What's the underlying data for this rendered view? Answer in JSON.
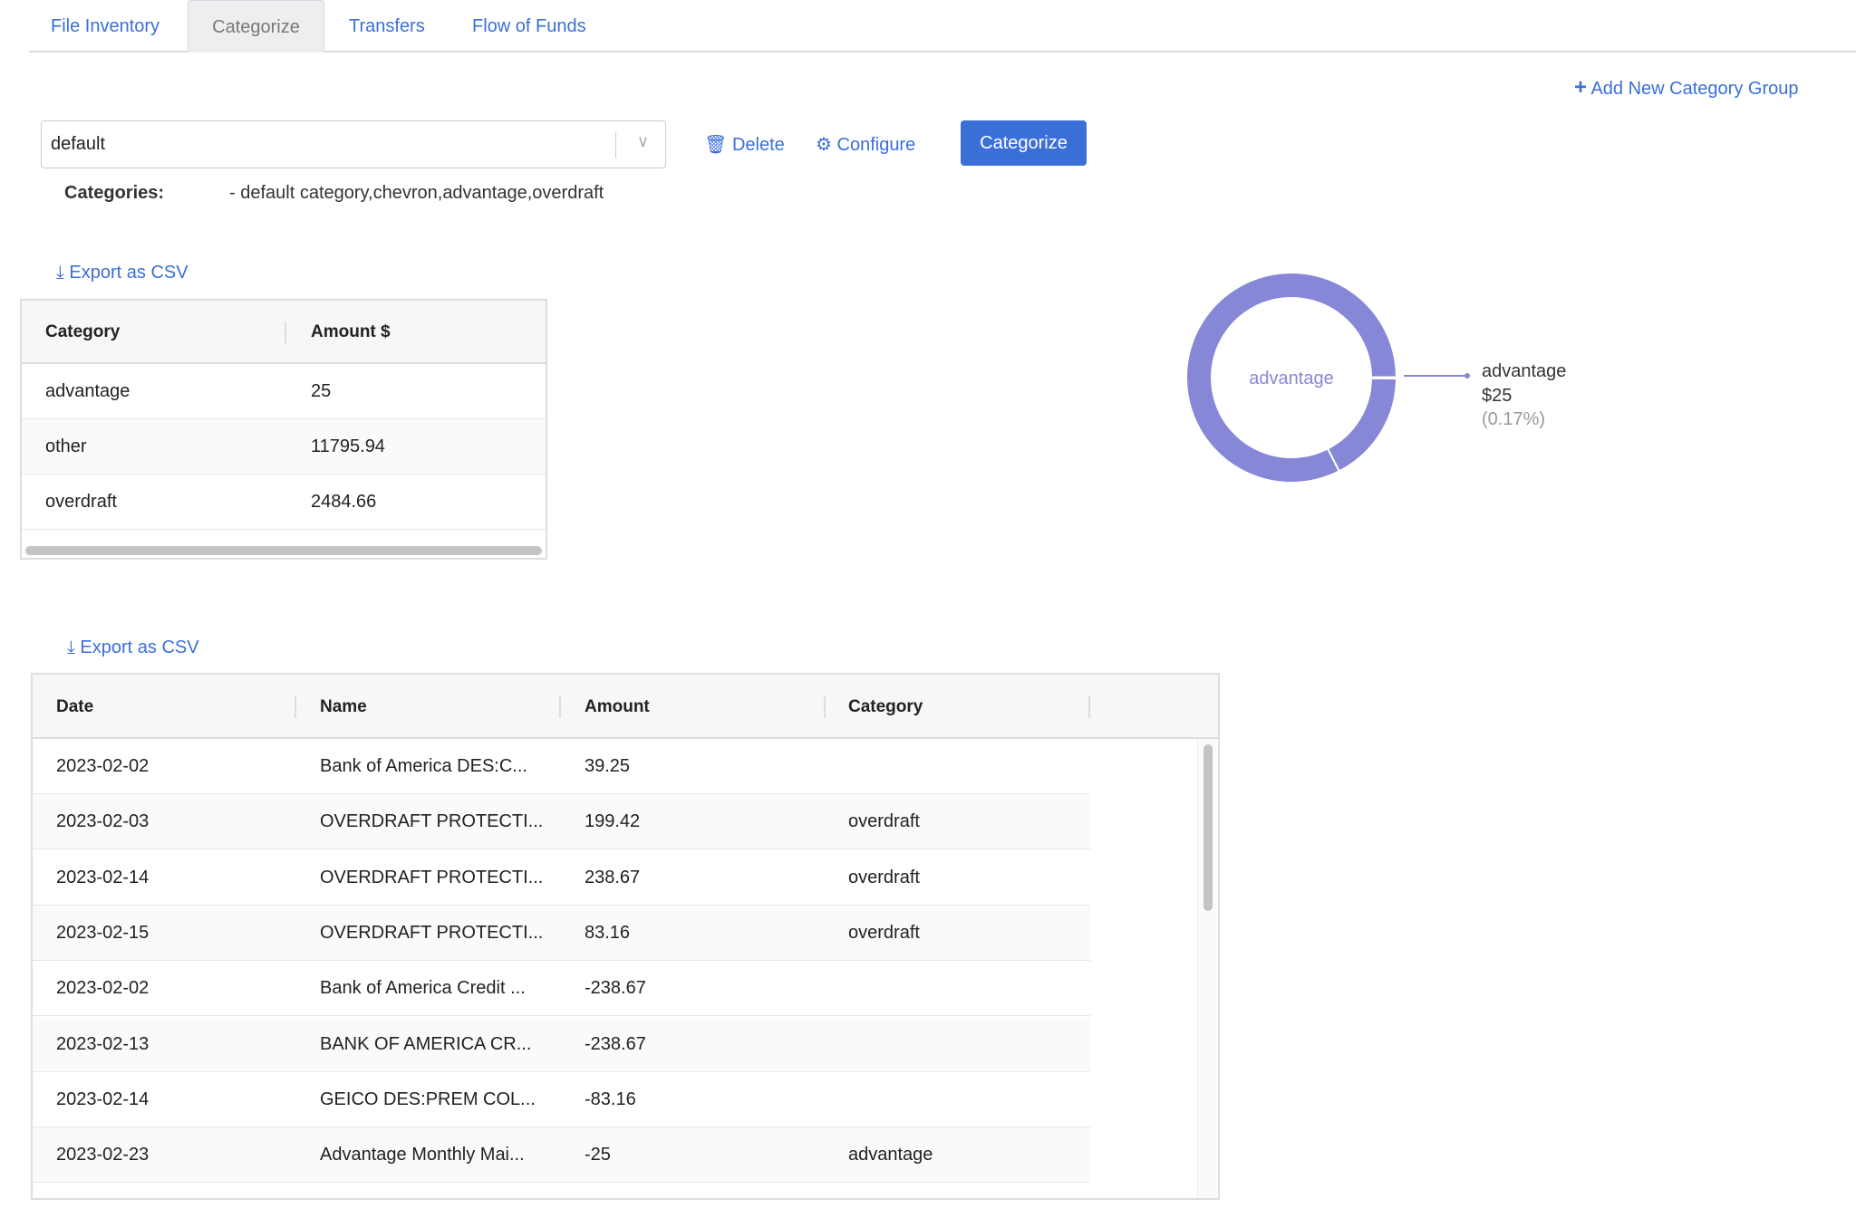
{
  "tabs": [
    {
      "label": "File Inventory"
    },
    {
      "label": "Categorize"
    },
    {
      "label": "Transfers"
    },
    {
      "label": "Flow of Funds"
    }
  ],
  "active_tab": "Categorize",
  "add_group_label": "Add New Category Group",
  "group_select": {
    "value": "default"
  },
  "toolbar": {
    "delete_label": "Delete",
    "configure_label": "Configure",
    "categorize_label": "Categorize"
  },
  "categories": {
    "label": "Categories:",
    "value": "- default category,chevron,advantage,overdraft"
  },
  "summary": {
    "export_label": "Export as CSV",
    "headers": [
      "Category",
      "Amount $"
    ],
    "rows": [
      [
        "advantage",
        "25"
      ],
      [
        "other",
        "11795.94"
      ],
      [
        "overdraft",
        "2484.66"
      ]
    ]
  },
  "chart_data": {
    "type": "pie",
    "donut": true,
    "center_label": "advantage",
    "slices": [
      {
        "label": "advantage",
        "value": 25
      },
      {
        "label": "overdraft",
        "value": 2484.66
      },
      {
        "label": "other",
        "value": 11795.94
      }
    ],
    "callout": {
      "label": "advantage",
      "value": "$25",
      "percent": "(0.17%)"
    },
    "color": "#8787d8"
  },
  "transactions": {
    "export_label": "Export as CSV",
    "headers": [
      "Date",
      "Name",
      "Amount",
      "Category"
    ],
    "rows": [
      [
        "2023-02-02",
        "Bank of America DES:C...",
        "39.25",
        ""
      ],
      [
        "2023-02-03",
        "OVERDRAFT PROTECTI...",
        "199.42",
        "overdraft"
      ],
      [
        "2023-02-14",
        "OVERDRAFT PROTECTI...",
        "238.67",
        "overdraft"
      ],
      [
        "2023-02-15",
        "OVERDRAFT PROTECTI...",
        "83.16",
        "overdraft"
      ],
      [
        "2023-02-02",
        "Bank of America Credit ...",
        "-238.67",
        ""
      ],
      [
        "2023-02-13",
        "BANK OF AMERICA CR...",
        "-238.67",
        ""
      ],
      [
        "2023-02-14",
        "GEICO DES:PREM COL...",
        "-83.16",
        ""
      ],
      [
        "2023-02-23",
        "Advantage Monthly Mai...",
        "-25",
        "advantage"
      ]
    ]
  }
}
